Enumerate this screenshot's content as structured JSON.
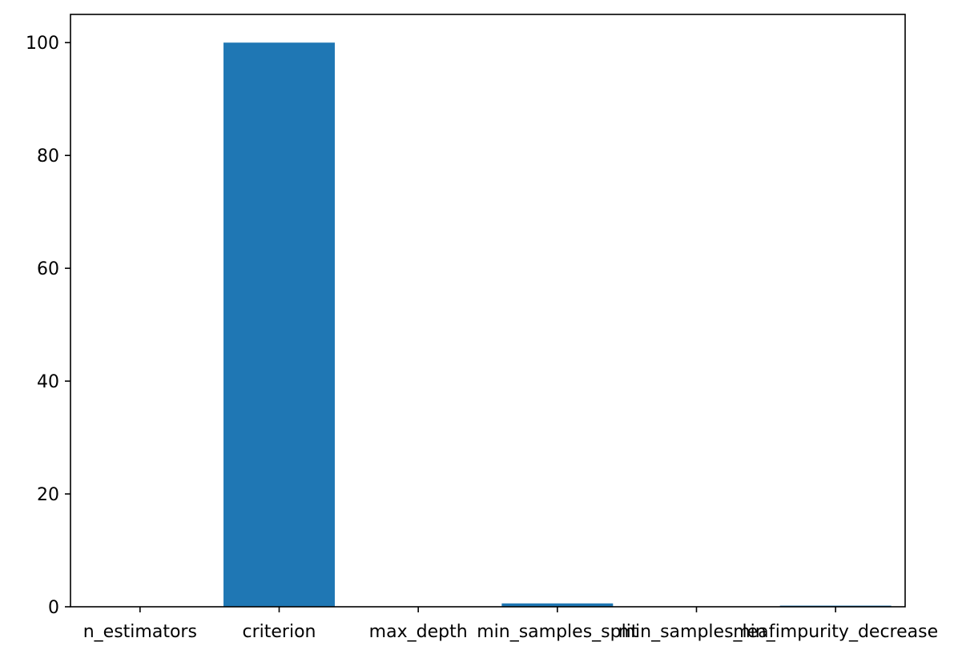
{
  "chart_data": {
    "type": "bar",
    "categories": [
      "n_estimators",
      "criterion",
      "max_depth",
      "min_samples_split",
      "min_samples_leaf",
      "min_impurity_decrease"
    ],
    "values": [
      0.0,
      100.0,
      0.0,
      0.6,
      0.0,
      0.2
    ],
    "y_ticks": [
      0,
      20,
      40,
      60,
      80,
      100
    ],
    "ylim": [
      0,
      105
    ],
    "title": "",
    "xlabel": "",
    "ylabel": "",
    "grid": false,
    "legend": "none",
    "bar_color": "#1f77b4"
  }
}
